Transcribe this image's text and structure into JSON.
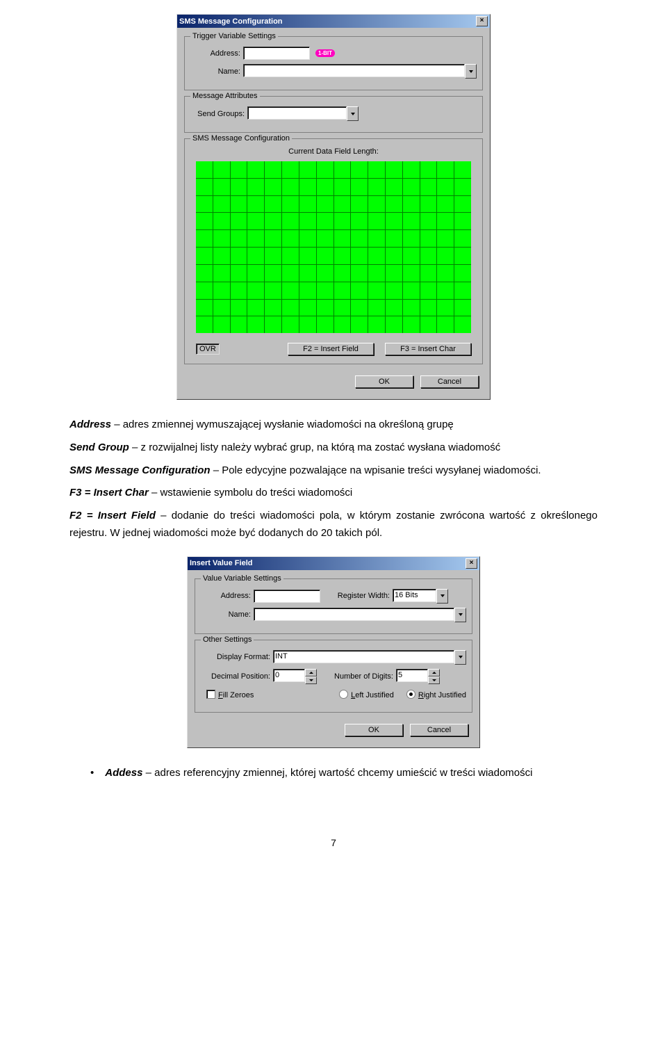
{
  "dialog1": {
    "title": "SMS Message Configuration",
    "fieldset1": {
      "legend": "Trigger Variable Settings",
      "address_label": "Address:",
      "name_label": "Name:",
      "bit_badge": "1-BIT"
    },
    "fieldset2": {
      "legend": "Message Attributes",
      "send_groups_label": "Send Groups:"
    },
    "fieldset3": {
      "legend": "SMS Message Configuration",
      "status_text": "Current Data Field Length:",
      "grid_rows": 10,
      "grid_cols": 16,
      "cell_color": "#00ff00",
      "gap_color": "#008000",
      "ovr_text": "OVR",
      "btn_f2": "F2 = Insert Field",
      "btn_f3": "F3 = Insert Char"
    },
    "ok": "OK",
    "cancel": "Cancel"
  },
  "para1": {
    "l1a": "Address",
    "l1b": " – adres zmiennej wymuszającej wysłanie wiadomości na określoną grupę",
    "l2a": "Send Group",
    "l2b": " – z rozwijalnej listy należy wybrać grup, na którą ma zostać wysłana wiadomość",
    "l3a": "SMS Message Configuration",
    "l3b": " – Pole edycyjne pozwalające na wpisanie treści wysyłanej wiadomości.",
    "l4a": "F3 = Insert Char",
    "l4b": " – wstawienie symbolu do treści wiadomości",
    "l5a": "F2 = Insert Field",
    "l5b": " – dodanie do treści wiadomości pola, w którym zostanie zwrócona wartość z określonego rejestru. W jednej wiadomości może być dodanych do 20 takich pól."
  },
  "dialog2": {
    "title": "Insert Value Field",
    "fieldset1": {
      "legend": "Value Variable Settings",
      "address_label": "Address:",
      "regwidth_label": "Register Width:",
      "regwidth_value": "16 Bits",
      "name_label": "Name:"
    },
    "fieldset2": {
      "legend": "Other Settings",
      "display_format_label": "Display Format:",
      "display_format_value": "INT",
      "decimal_label": "Decimal Position:",
      "decimal_value": "0",
      "digits_label": "Number of Digits:",
      "digits_value": "5",
      "fill_zeroes": "Fill Zeroes",
      "left_just": "Left Justified",
      "right_just": "Right Justified"
    },
    "ok": "OK",
    "cancel": "Cancel"
  },
  "bullet1": {
    "a": "Addess",
    "b": " – adres referencyjny zmiennej, której wartość chcemy umieścić w treści wiadomości"
  },
  "page_num": "7"
}
